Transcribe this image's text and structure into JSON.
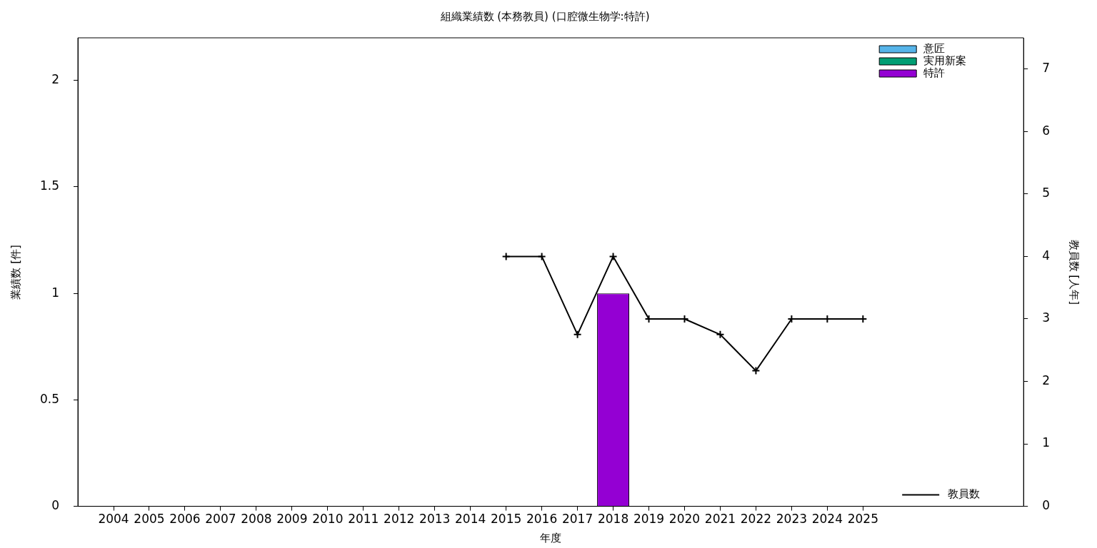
{
  "chart_data": {
    "type": "bar",
    "title": "組織業績数 (本務教員) (口腔微生物学:特許)",
    "xlabel": "年度",
    "ylabel": "業績数 [件]",
    "y2label": "教員数 [人年]",
    "x": [
      2004,
      2005,
      2006,
      2007,
      2008,
      2009,
      2010,
      2011,
      2012,
      2013,
      2014,
      2015,
      2016,
      2017,
      2018,
      2019,
      2020,
      2021,
      2022,
      2023,
      2024,
      2025
    ],
    "xlim": [
      2003,
      2029.5
    ],
    "xticks": [
      2004,
      2005,
      2006,
      2007,
      2008,
      2009,
      2010,
      2011,
      2012,
      2013,
      2014,
      2015,
      2016,
      2017,
      2018,
      2019,
      2020,
      2021,
      2022,
      2023,
      2024,
      2025
    ],
    "ylim": [
      0,
      2.2
    ],
    "yticks": [
      0,
      0.5,
      1,
      1.5,
      2
    ],
    "y2lim": [
      0,
      7.5
    ],
    "y2ticks": [
      0,
      1,
      2,
      3,
      4,
      5,
      6,
      7
    ],
    "stacked": true,
    "grid": false,
    "legend": "top right",
    "series": [
      {
        "name": "意匠",
        "color": "#56b4e9",
        "values": [
          0,
          0,
          0,
          0,
          0,
          0,
          0,
          0,
          0,
          0,
          0,
          0,
          0,
          0,
          0,
          0,
          0,
          0,
          0,
          0,
          0,
          0
        ]
      },
      {
        "name": "実用新案",
        "color": "#009e73",
        "values": [
          0,
          0,
          0,
          0,
          0,
          0,
          0,
          0,
          0,
          0,
          0,
          0,
          0,
          0,
          0,
          0,
          0,
          0,
          0,
          0,
          0,
          0
        ]
      },
      {
        "name": "特許",
        "color": "#9400d3",
        "values": [
          0,
          0,
          0,
          0,
          0,
          0,
          0,
          0,
          0,
          0,
          0,
          0,
          0,
          0,
          1,
          0,
          0,
          0,
          0,
          0,
          0,
          0
        ]
      },
      {
        "name": "教員数",
        "color": "#000000",
        "type": "line",
        "axis": "y2",
        "marker": "cross",
        "values": [
          null,
          null,
          null,
          null,
          null,
          null,
          null,
          null,
          null,
          null,
          null,
          4,
          4,
          2.75,
          4,
          3,
          3,
          2.75,
          2.17,
          3,
          3,
          3
        ]
      }
    ]
  }
}
